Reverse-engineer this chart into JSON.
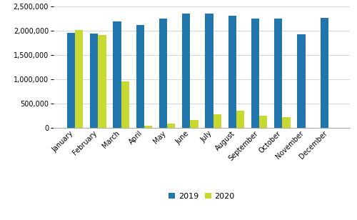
{
  "months": [
    "January",
    "February",
    "March",
    "April",
    "May",
    "June",
    "July",
    "August",
    "September",
    "October",
    "November",
    "December"
  ],
  "values_2019": [
    1960000,
    1950000,
    2190000,
    2120000,
    2260000,
    2360000,
    2350000,
    2310000,
    2260000,
    2250000,
    1930000,
    2270000
  ],
  "values_2020": [
    2020000,
    1920000,
    960000,
    45000,
    85000,
    155000,
    275000,
    345000,
    240000,
    220000,
    0,
    0
  ],
  "color_2019": "#2176AE",
  "color_2020": "#C8D932",
  "ylim": [
    0,
    2500000
  ],
  "yticks": [
    0,
    500000,
    1000000,
    1500000,
    2000000,
    2500000
  ],
  "ytick_labels": [
    "0",
    "500,000",
    "1,000,000",
    "1,500,000",
    "2,000,000",
    "2,500,000"
  ],
  "legend_labels": [
    "2019",
    "2020"
  ],
  "background_color": "#ffffff",
  "grid_color": "#d0d0d0",
  "bar_width": 0.35,
  "tick_fontsize": 7,
  "legend_fontsize": 8
}
